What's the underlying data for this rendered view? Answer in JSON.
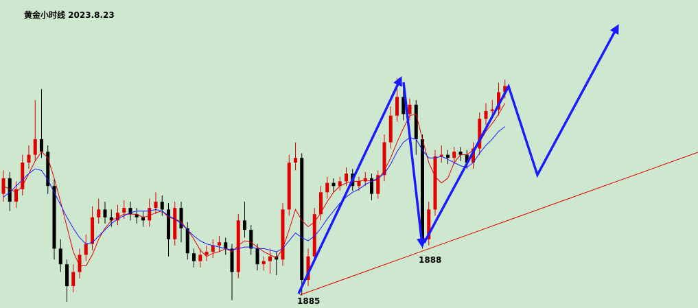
{
  "chart_data": {
    "type": "candlestick",
    "title": "黄金小时线 2023.8.23",
    "ylim": [
      1884.2,
      1903.9
    ],
    "up_color": "#e00000",
    "down_color": "#000000",
    "open": [
      1891.5,
      1892.5,
      1891.0,
      1891.8,
      1893.5,
      1894.0,
      1895.0,
      1894.2,
      1892.0,
      1888.0,
      1887.0,
      1885.6,
      1886.5,
      1887.6,
      1888.3,
      1890.0,
      1890.5,
      1890.0,
      1889.8,
      1890.3,
      1890.6,
      1890.2,
      1890.0,
      1889.8,
      1890.6,
      1891.0,
      1890.5,
      1888.6,
      1890.6,
      1889.3,
      1887.7,
      1887.2,
      1887.6,
      1887.8,
      1888.2,
      1888.4,
      1888.0,
      1886.5,
      1889.8,
      1889.2,
      1888.0,
      1887.0,
      1887.2,
      1887.5,
      1887.3,
      1890.5,
      1893.5,
      1893.8,
      1886.0,
      1887.5,
      1890.2,
      1891.6,
      1892.2,
      1892.0,
      1892.3,
      1892.8,
      1892.0,
      1892.3,
      1892.5,
      1891.5,
      1892.7,
      1894.8,
      1896.5,
      1897.7,
      1896.6,
      1897.2,
      1895.0,
      1888.6,
      1890.5,
      1893.9,
      1894.0,
      1893.8,
      1894.2,
      1894.0,
      1893.5,
      1894.4,
      1896.3,
      1896.8,
      1896.9,
      1898.0
    ],
    "high": [
      1893.0,
      1892.9,
      1892.3,
      1894.0,
      1894.6,
      1897.5,
      1898.2,
      1894.6,
      1892.4,
      1888.6,
      1887.3,
      1887.0,
      1888.0,
      1888.9,
      1890.7,
      1891.2,
      1891.0,
      1890.5,
      1890.8,
      1891.1,
      1891.0,
      1890.6,
      1890.4,
      1891.2,
      1891.6,
      1891.4,
      1890.9,
      1891.0,
      1891.0,
      1889.7,
      1888.0,
      1888.0,
      1888.2,
      1888.6,
      1888.8,
      1888.7,
      1888.3,
      1890.2,
      1891.0,
      1889.5,
      1888.3,
      1887.5,
      1888.0,
      1887.8,
      1890.9,
      1894.0,
      1894.8,
      1894.1,
      1888.0,
      1890.6,
      1892.0,
      1892.6,
      1892.5,
      1892.6,
      1893.2,
      1893.1,
      1892.6,
      1892.9,
      1892.8,
      1893.0,
      1895.3,
      1897.1,
      1898.9,
      1898.2,
      1897.6,
      1897.5,
      1895.3,
      1891.0,
      1894.3,
      1894.6,
      1894.3,
      1894.5,
      1894.5,
      1894.3,
      1894.8,
      1896.7,
      1897.3,
      1897.5,
      1898.6,
      1898.8
    ],
    "low": [
      1891.0,
      1890.4,
      1890.6,
      1891.4,
      1893.1,
      1893.6,
      1893.8,
      1891.5,
      1887.3,
      1886.5,
      1884.6,
      1885.2,
      1886.1,
      1887.2,
      1887.9,
      1889.6,
      1889.6,
      1889.4,
      1889.5,
      1889.9,
      1889.8,
      1889.6,
      1889.4,
      1889.4,
      1890.2,
      1890.1,
      1887.5,
      1888.2,
      1888.4,
      1887.3,
      1886.8,
      1886.8,
      1887.2,
      1887.4,
      1887.8,
      1887.6,
      1884.7,
      1886.1,
      1888.7,
      1887.6,
      1886.6,
      1886.6,
      1886.4,
      1886.3,
      1886.9,
      1890.1,
      1893.0,
      1885.0,
      1885.6,
      1887.1,
      1889.8,
      1891.2,
      1891.6,
      1891.7,
      1892.0,
      1891.7,
      1891.7,
      1892.0,
      1891.1,
      1891.2,
      1892.3,
      1894.4,
      1896.1,
      1896.2,
      1896.2,
      1894.0,
      1888.0,
      1888.2,
      1890.1,
      1893.5,
      1893.4,
      1893.4,
      1893.6,
      1893.1,
      1893.1,
      1894.0,
      1895.9,
      1896.4,
      1896.5,
      1897.6
    ],
    "close": [
      1892.5,
      1891.0,
      1891.8,
      1893.5,
      1894.0,
      1895.0,
      1894.2,
      1892.0,
      1888.0,
      1887.0,
      1885.6,
      1886.5,
      1887.6,
      1888.3,
      1890.0,
      1890.5,
      1890.0,
      1889.8,
      1890.3,
      1890.6,
      1890.2,
      1890.0,
      1889.8,
      1890.6,
      1891.0,
      1890.5,
      1888.6,
      1890.6,
      1889.3,
      1887.7,
      1887.2,
      1887.6,
      1887.8,
      1888.2,
      1888.4,
      1888.0,
      1886.5,
      1889.8,
      1889.2,
      1888.0,
      1887.0,
      1887.2,
      1887.5,
      1887.3,
      1890.5,
      1893.5,
      1893.8,
      1886.0,
      1887.5,
      1890.2,
      1891.6,
      1892.2,
      1892.0,
      1892.3,
      1892.8,
      1892.0,
      1892.3,
      1892.5,
      1891.5,
      1892.7,
      1894.8,
      1896.5,
      1897.7,
      1896.6,
      1897.2,
      1895.0,
      1888.6,
      1890.5,
      1893.9,
      1894.0,
      1893.8,
      1894.2,
      1894.0,
      1893.5,
      1894.4,
      1896.3,
      1896.8,
      1896.9,
      1898.0,
      1898.4
    ],
    "lines": [
      {
        "color": "#e00000",
        "values": [
          1892.0,
          1891.8,
          1891.6,
          1892.0,
          1892.8,
          1893.6,
          1894.2,
          1893.8,
          1892.5,
          1891.0,
          1889.4,
          1887.8,
          1886.9,
          1886.9,
          1887.6,
          1888.6,
          1889.3,
          1889.8,
          1890.0,
          1890.2,
          1890.2,
          1890.2,
          1890.0,
          1890.1,
          1890.3,
          1890.4,
          1890.0,
          1889.9,
          1889.7,
          1889.2,
          1888.6,
          1887.9,
          1887.5,
          1887.7,
          1887.8,
          1888.0,
          1887.8,
          1888.2,
          1888.5,
          1888.4,
          1888.1,
          1887.8,
          1887.6,
          1887.4,
          1888.0,
          1889.2,
          1890.5,
          1889.8,
          1889.4,
          1889.7,
          1890.3,
          1891.0,
          1891.6,
          1892.0,
          1892.2,
          1892.3,
          1892.3,
          1892.4,
          1892.3,
          1892.4,
          1893.0,
          1893.8,
          1894.8,
          1895.7,
          1896.5,
          1896.6,
          1895.0,
          1893.5,
          1892.6,
          1892.2,
          1892.5,
          1893.5,
          1894.0,
          1894.0,
          1894.3,
          1894.8,
          1895.5,
          1896.0,
          1896.6,
          1897.3
        ]
      },
      {
        "color": "#1a1aff",
        "values": [
          1891.3,
          1891.6,
          1892.0,
          1892.4,
          1892.8,
          1893.1,
          1893.0,
          1892.4,
          1891.6,
          1890.8,
          1890.0,
          1889.3,
          1888.7,
          1888.3,
          1888.4,
          1888.8,
          1889.2,
          1889.6,
          1889.9,
          1890.1,
          1890.3,
          1890.4,
          1890.4,
          1890.4,
          1890.5,
          1890.4,
          1890.1,
          1889.9,
          1889.6,
          1889.2,
          1888.8,
          1888.5,
          1888.3,
          1888.2,
          1888.1,
          1888.0,
          1887.9,
          1888.0,
          1888.1,
          1888.1,
          1888.0,
          1888.0,
          1887.9,
          1887.8,
          1888.0,
          1888.5,
          1889.0,
          1888.7,
          1888.5,
          1888.8,
          1889.3,
          1889.9,
          1890.4,
          1890.9,
          1891.3,
          1891.6,
          1891.8,
          1892.1,
          1892.3,
          1892.5,
          1892.8,
          1893.4,
          1894.2,
          1894.8,
          1895.1,
          1895.0,
          1894.3,
          1893.8,
          1893.8,
          1893.9,
          1893.7,
          1893.5,
          1893.3,
          1893.2,
          1893.5,
          1894.1,
          1894.6,
          1895.0,
          1895.5,
          1895.8
        ]
      }
    ],
    "annotations": [
      "1885",
      "1888"
    ]
  }
}
